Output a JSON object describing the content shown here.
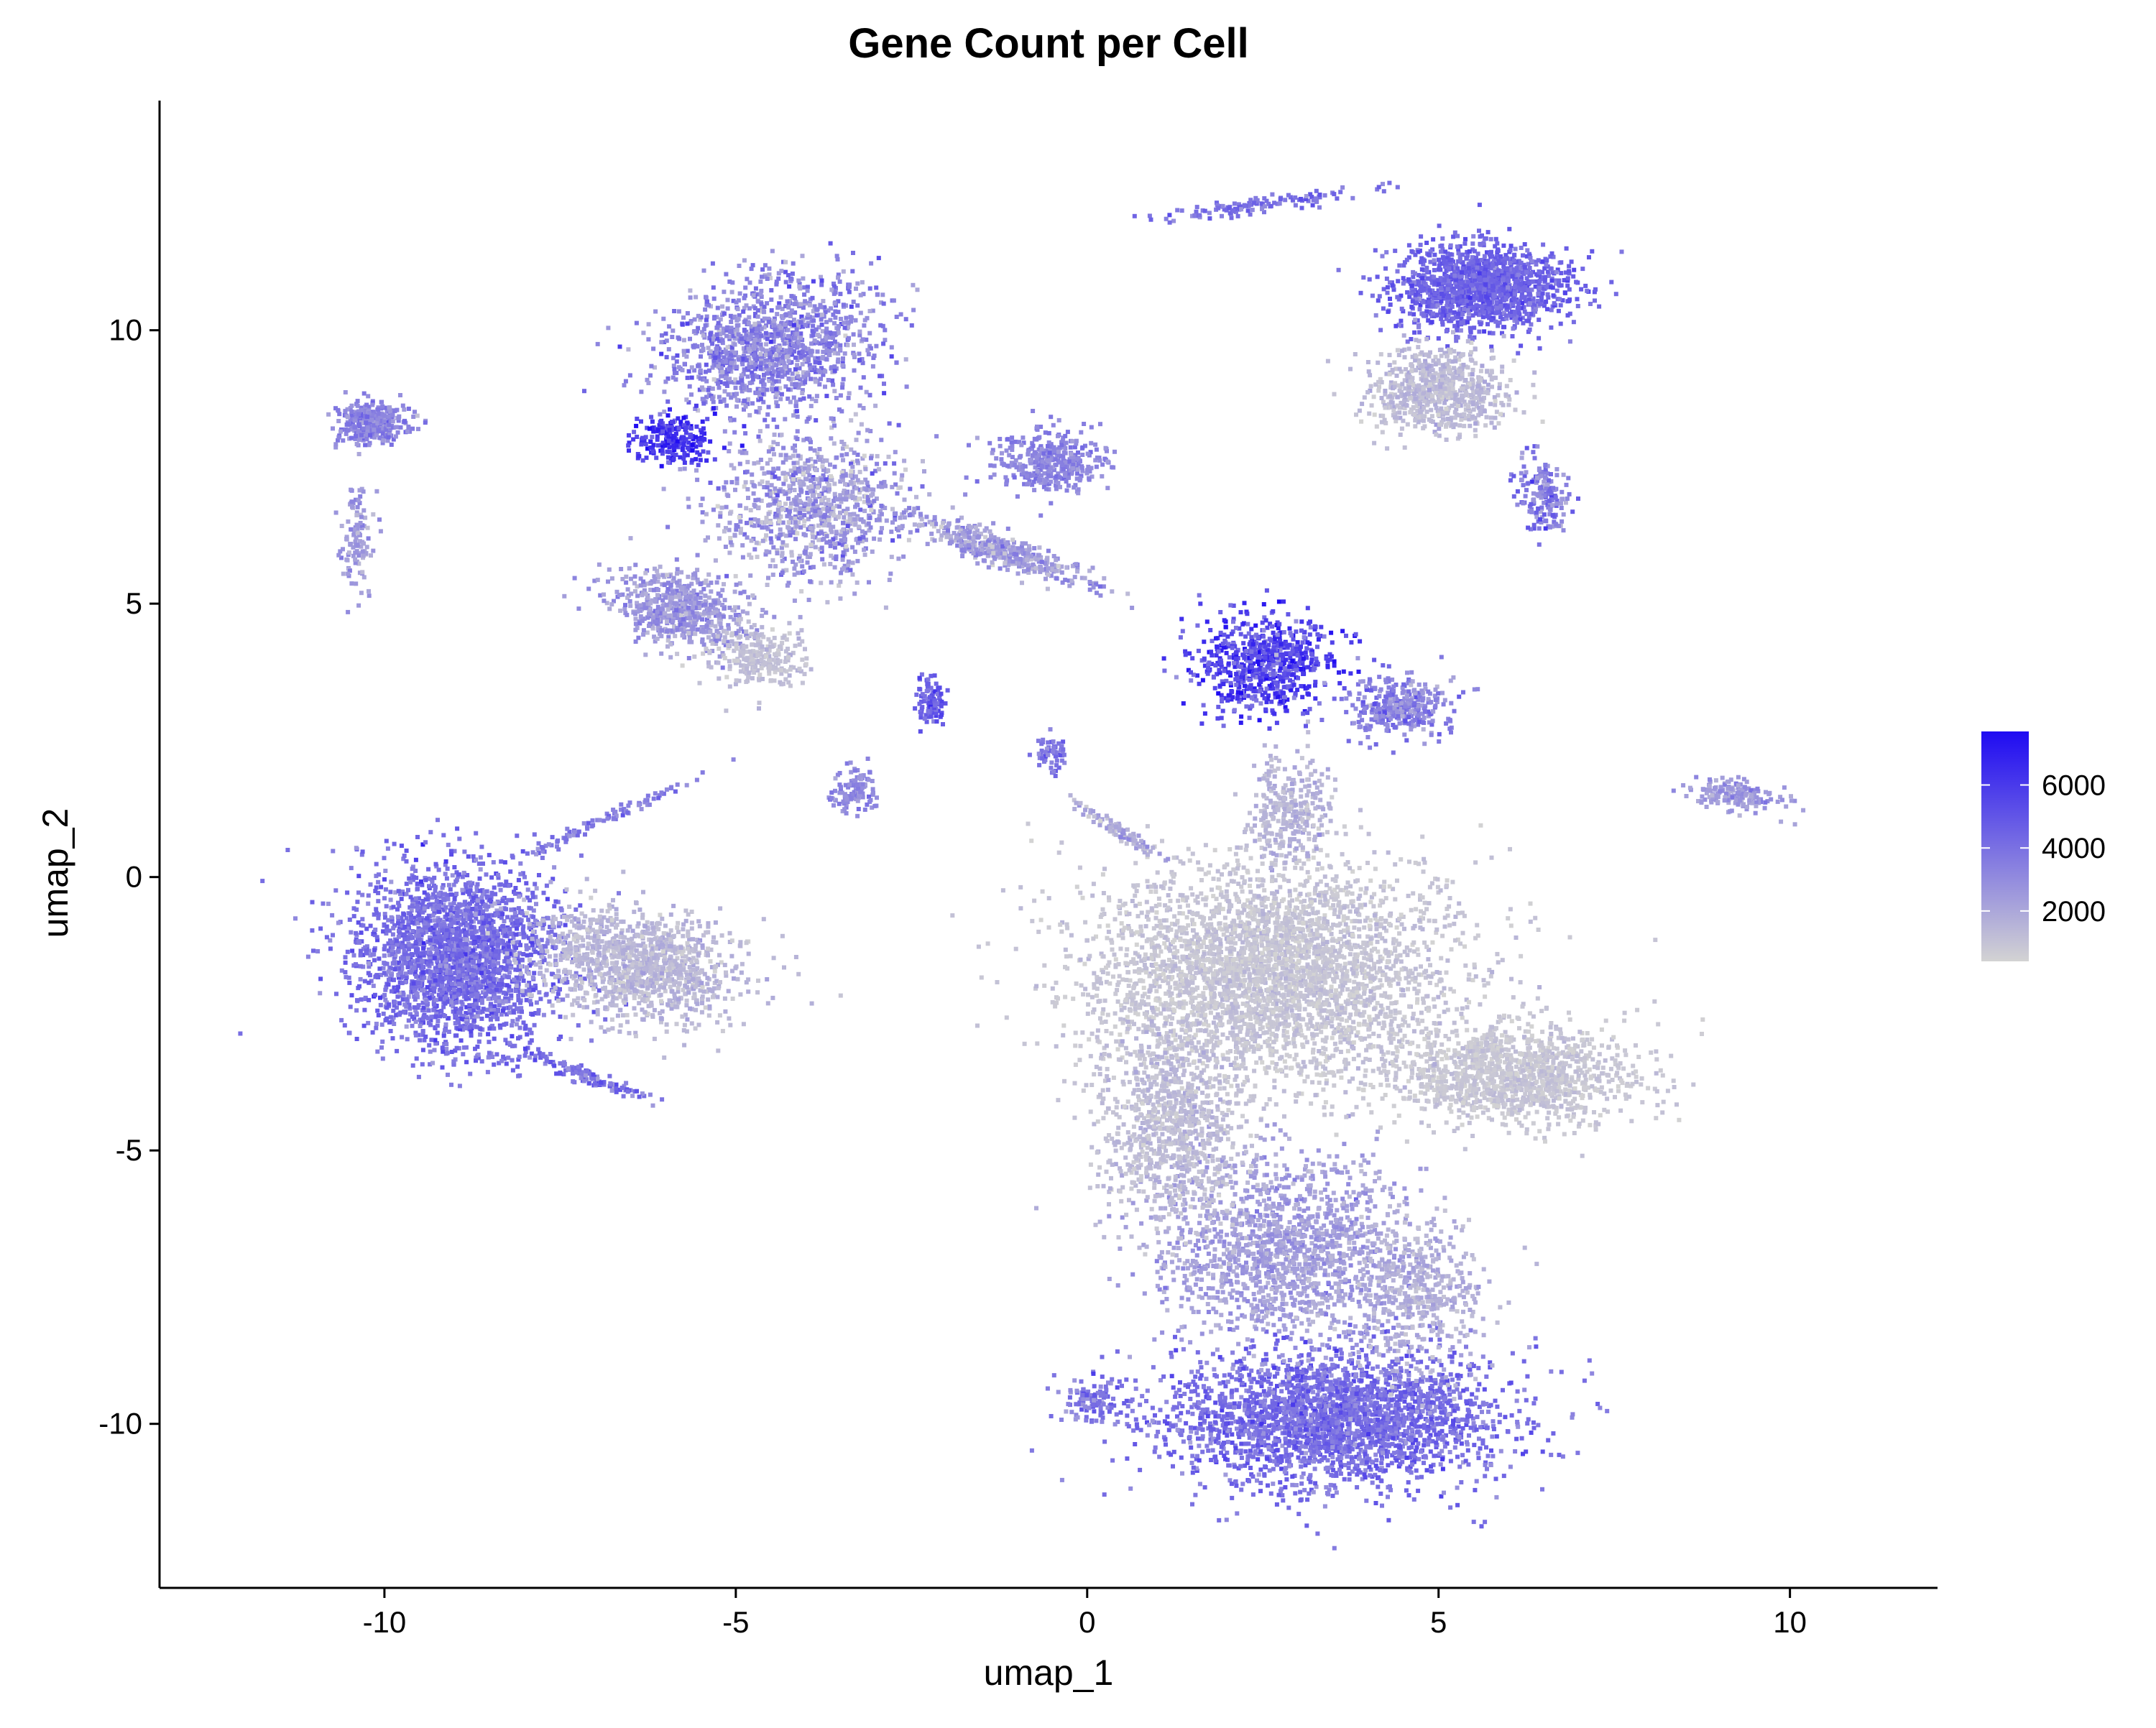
{
  "chart_data": {
    "type": "scatter",
    "title": "Gene Count per Cell",
    "xlabel": "umap_1",
    "ylabel": "umap_2",
    "xlim": [
      -13.2,
      12.1
    ],
    "ylim": [
      -13.0,
      14.2
    ],
    "x_ticks": [
      {
        "value": -10,
        "label": "-10"
      },
      {
        "value": -5,
        "label": "-5"
      },
      {
        "value": 0,
        "label": "0"
      },
      {
        "value": 5,
        "label": "5"
      },
      {
        "value": 10,
        "label": "10"
      }
    ],
    "y_ticks": [
      {
        "value": -10,
        "label": "-10"
      },
      {
        "value": -5,
        "label": "-5"
      },
      {
        "value": 0,
        "label": "0"
      },
      {
        "value": 5,
        "label": "5"
      },
      {
        "value": 10,
        "label": "10"
      }
    ],
    "grid": false,
    "legend_position": "right",
    "color_scale": {
      "low_color": "#d3d3d3",
      "high_color": "#1f0bf2",
      "min": 400,
      "max": 7700,
      "breaks": [
        {
          "value": 2000,
          "label": "2000"
        },
        {
          "value": 4000,
          "label": "4000"
        },
        {
          "value": 6000,
          "label": "6000"
        }
      ]
    },
    "clusters": [
      {
        "id": "bottom-main-lower",
        "cx": 3.5,
        "cy": -9.9,
        "sx": 2.2,
        "sy": 1.1,
        "angle": 0,
        "value": 4100,
        "spread": 700,
        "n": 2600
      },
      {
        "id": "bottom-main-mid",
        "cx": 2.8,
        "cy": -6.8,
        "sx": 1.6,
        "sy": 1.5,
        "angle": 0,
        "value": 2300,
        "spread": 500,
        "n": 1400
      },
      {
        "id": "bottom-right-tail",
        "cx": 4.7,
        "cy": -7.6,
        "sx": 0.9,
        "sy": 1.2,
        "angle": 0,
        "value": 1700,
        "spread": 400,
        "n": 500
      },
      {
        "id": "center-large-gray",
        "cx": 2.6,
        "cy": -1.8,
        "sx": 2.3,
        "sy": 1.8,
        "angle": 0,
        "value": 900,
        "spread": 300,
        "n": 3600
      },
      {
        "id": "center-left-column",
        "cx": 1.2,
        "cy": -4.6,
        "sx": 0.9,
        "sy": 1.6,
        "angle": 0,
        "value": 1200,
        "spread": 350,
        "n": 900
      },
      {
        "id": "center-right-lobe",
        "cx": 6.1,
        "cy": -3.6,
        "sx": 1.5,
        "sy": 0.8,
        "angle": 0,
        "value": 850,
        "spread": 250,
        "n": 1300
      },
      {
        "id": "left-big-blob",
        "cx": -9.0,
        "cy": -1.5,
        "sx": 1.3,
        "sy": 1.5,
        "angle": 0,
        "value": 4100,
        "spread": 700,
        "n": 2400
      },
      {
        "id": "left-blob-gray-tail",
        "cx": -6.4,
        "cy": -1.6,
        "sx": 1.3,
        "sy": 0.9,
        "angle": -15,
        "value": 1400,
        "spread": 400,
        "n": 1200
      },
      {
        "id": "top-center-lobe",
        "cx": -4.5,
        "cy": 9.7,
        "sx": 1.4,
        "sy": 1.1,
        "angle": 25,
        "value": 3300,
        "spread": 900,
        "n": 1300
      },
      {
        "id": "top-center-stem",
        "cx": -3.9,
        "cy": 6.8,
        "sx": 1.2,
        "sy": 1.2,
        "angle": 0,
        "value": 2400,
        "spread": 1000,
        "n": 900
      },
      {
        "id": "top-left-dark-patch",
        "cx": -5.9,
        "cy": 8.0,
        "sx": 0.5,
        "sy": 0.4,
        "angle": 0,
        "value": 6200,
        "spread": 800,
        "n": 220
      },
      {
        "id": "mid-left-lobe",
        "cx": -5.8,
        "cy": 4.9,
        "sx": 0.9,
        "sy": 0.6,
        "angle": -20,
        "value": 2600,
        "spread": 700,
        "n": 600
      },
      {
        "id": "mid-left-lobe-gray",
        "cx": -4.7,
        "cy": 4.0,
        "sx": 0.6,
        "sy": 0.5,
        "angle": 0,
        "value": 1100,
        "spread": 300,
        "n": 260
      },
      {
        "id": "top-right-upper",
        "cx": 5.6,
        "cy": 10.8,
        "sx": 1.1,
        "sy": 0.7,
        "angle": 0,
        "value": 4500,
        "spread": 600,
        "n": 1400
      },
      {
        "id": "top-right-lower",
        "cx": 5.0,
        "cy": 8.9,
        "sx": 0.9,
        "sy": 0.7,
        "angle": 0,
        "value": 1300,
        "spread": 400,
        "n": 700
      },
      {
        "id": "top-right-tail",
        "cx": 6.5,
        "cy": 7.0,
        "sx": 0.3,
        "sy": 0.7,
        "angle": 15,
        "value": 3600,
        "spread": 900,
        "n": 180
      },
      {
        "id": "mid-center-dark",
        "cx": 2.5,
        "cy": 3.9,
        "sx": 0.9,
        "sy": 0.8,
        "angle": 0,
        "value": 5600,
        "spread": 1200,
        "n": 700
      },
      {
        "id": "mid-center-right",
        "cx": 4.4,
        "cy": 3.1,
        "sx": 0.7,
        "sy": 0.5,
        "angle": 0,
        "value": 3400,
        "spread": 800,
        "n": 350
      },
      {
        "id": "mid-center-stem",
        "cx": 2.9,
        "cy": 1.2,
        "sx": 0.5,
        "sy": 1.0,
        "angle": 0,
        "value": 1500,
        "spread": 400,
        "n": 300
      },
      {
        "id": "upper-mid-blob",
        "cx": -0.5,
        "cy": 7.6,
        "sx": 0.7,
        "sy": 0.5,
        "angle": 0,
        "value": 3300,
        "spread": 500,
        "n": 380
      },
      {
        "id": "diagonal-streak",
        "cx": -1.3,
        "cy": 6.0,
        "sx": 1.4,
        "sy": 0.25,
        "angle": -25,
        "value": 2400,
        "spread": 800,
        "n": 420
      },
      {
        "id": "top-left-small",
        "cx": -10.2,
        "cy": 8.3,
        "sx": 0.5,
        "sy": 0.35,
        "angle": 0,
        "value": 3300,
        "spread": 600,
        "n": 320
      },
      {
        "id": "top-left-arm",
        "cx": -10.4,
        "cy": 6.2,
        "sx": 0.2,
        "sy": 0.9,
        "angle": 0,
        "value": 2400,
        "spread": 600,
        "n": 110
      },
      {
        "id": "far-right-small",
        "cx": 9.2,
        "cy": 1.5,
        "sx": 0.6,
        "sy": 0.25,
        "angle": -10,
        "value": 2600,
        "spread": 500,
        "n": 160
      },
      {
        "id": "small-mid-1",
        "cx": -3.3,
        "cy": 1.6,
        "sx": 0.3,
        "sy": 0.35,
        "angle": 0,
        "value": 3100,
        "spread": 500,
        "n": 110
      },
      {
        "id": "small-mid-2",
        "cx": -2.2,
        "cy": 3.2,
        "sx": 0.2,
        "sy": 0.35,
        "angle": 0,
        "value": 4900,
        "spread": 700,
        "n": 90
      },
      {
        "id": "small-mid-3",
        "cx": -0.5,
        "cy": 2.3,
        "sx": 0.2,
        "sy": 0.3,
        "angle": 0,
        "value": 3900,
        "spread": 600,
        "n": 60
      },
      {
        "id": "left-streak",
        "cx": -7.2,
        "cy": -3.6,
        "sx": 1.0,
        "sy": 0.12,
        "angle": -25,
        "value": 4100,
        "spread": 800,
        "n": 110
      },
      {
        "id": "left-upper-streak",
        "cx": -6.8,
        "cy": 1.1,
        "sx": 1.3,
        "sy": 0.1,
        "angle": 30,
        "value": 3600,
        "spread": 600,
        "n": 90
      },
      {
        "id": "top-arc",
        "cx": 2.5,
        "cy": 12.3,
        "sx": 1.5,
        "sy": 0.12,
        "angle": 10,
        "value": 4000,
        "spread": 600,
        "n": 120
      },
      {
        "id": "connector-to-center",
        "cx": 0.5,
        "cy": 0.8,
        "sx": 0.7,
        "sy": 0.12,
        "angle": -40,
        "value": 1800,
        "spread": 600,
        "n": 90
      },
      {
        "id": "lower-left-satellite",
        "cx": 0.1,
        "cy": -9.6,
        "sx": 0.4,
        "sy": 0.4,
        "angle": 0,
        "value": 3800,
        "spread": 700,
        "n": 110
      }
    ]
  }
}
